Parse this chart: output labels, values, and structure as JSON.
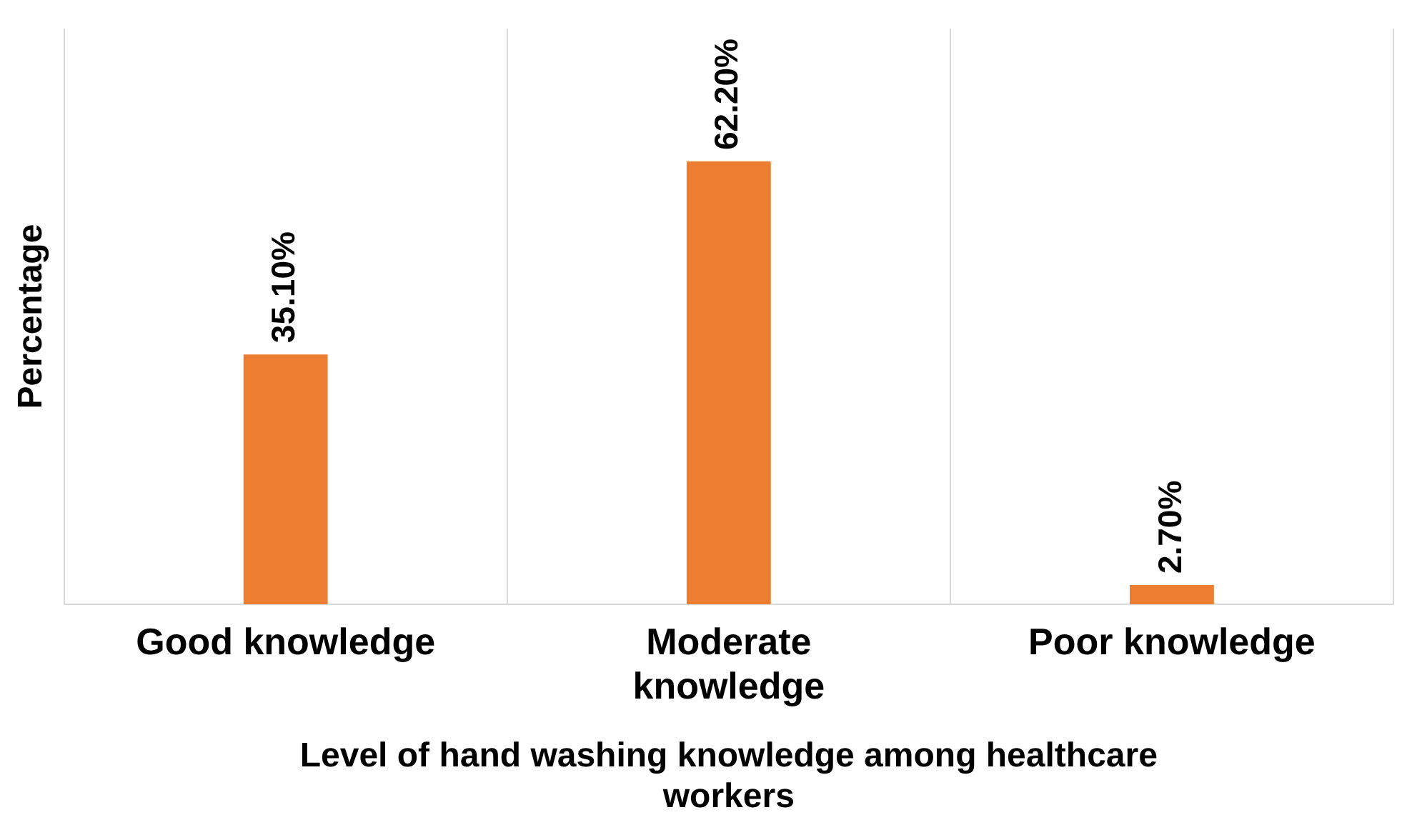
{
  "chart_data": {
    "type": "bar",
    "xlabel": "Level of hand washing knowledge among healthcare workers",
    "ylabel": "Percentage",
    "categories": [
      "Good knowledge",
      "Moderate knowledge",
      "Poor knowledge"
    ],
    "values": [
      35.1,
      62.2,
      2.7
    ],
    "value_labels": [
      "35.10%",
      "62.20%",
      "2.70%"
    ],
    "color": "#ed7d31",
    "grid": "x",
    "tick_labels": "x"
  }
}
